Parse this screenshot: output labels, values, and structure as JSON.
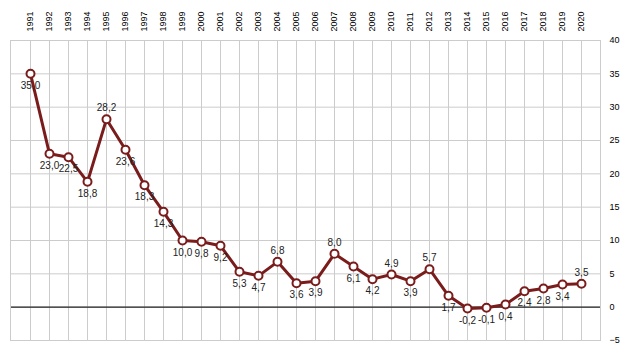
{
  "chart_data": {
    "type": "line",
    "categories": [
      "1991",
      "1992",
      "1993",
      "1994",
      "1995",
      "1996",
      "1997",
      "1998",
      "1999",
      "2000",
      "2001",
      "2002",
      "2003",
      "2004",
      "2005",
      "2006",
      "2007",
      "2008",
      "2009",
      "2010",
      "2011",
      "2012",
      "2013",
      "2014",
      "2015",
      "2016",
      "2017",
      "2018",
      "2019",
      "2020"
    ],
    "values": [
      35.0,
      23.0,
      22.5,
      18.8,
      28.2,
      23.6,
      18.3,
      14.3,
      10.0,
      9.8,
      9.2,
      5.3,
      4.7,
      6.8,
      3.6,
      3.9,
      8.0,
      6.1,
      4.2,
      4.9,
      3.9,
      5.7,
      1.7,
      -0.2,
      -0.1,
      0.4,
      2.4,
      2.8,
      3.4,
      3.5
    ],
    "value_labels": [
      "35,0",
      "23,0",
      "22,5",
      "18,8",
      "28,2",
      "23,6",
      "18,3",
      "14,3",
      "10,0",
      "9,8",
      "9,2",
      "5,3",
      "4,7",
      "6,8",
      "3,6",
      "3,9",
      "8,0",
      "6,1",
      "4,2",
      "4,9",
      "3,9",
      "5,7",
      "1,7",
      "-0,2",
      "-0,1",
      "0,4",
      "2,4",
      "2,8",
      "3,4",
      "3,5"
    ],
    "color": "#7a1c1c",
    "marker": "circle",
    "ylim": [
      -5,
      40
    ],
    "yticks": [
      -5,
      0,
      5,
      10,
      15,
      20,
      25,
      30,
      35,
      40
    ],
    "grid": true,
    "data_labels": true
  }
}
